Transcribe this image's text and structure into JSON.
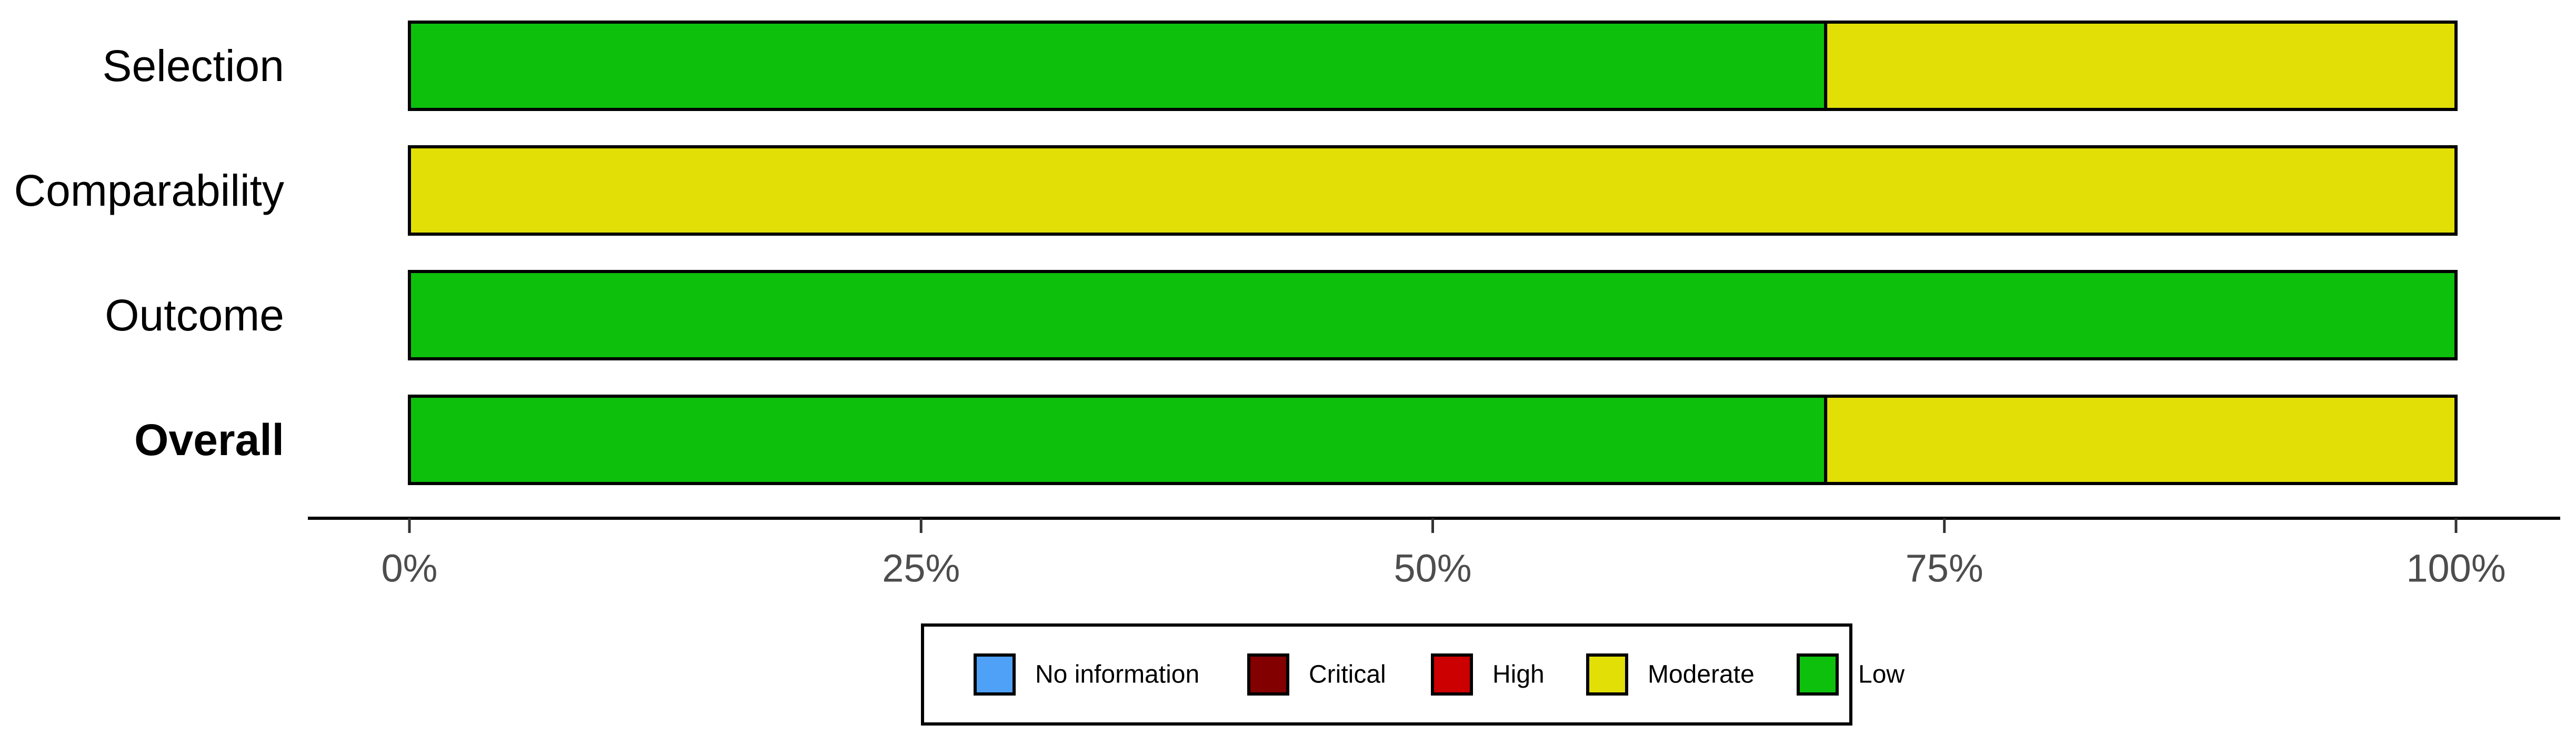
{
  "chart_data": {
    "type": "bar",
    "orientation": "horizontal",
    "stacked": true,
    "title": "",
    "xlabel": "",
    "ylabel": "",
    "xlim": [
      0,
      100
    ],
    "x_ticks": [
      "0%",
      "25%",
      "50%",
      "75%",
      "100%"
    ],
    "categories": [
      "Selection",
      "Comparability",
      "Outcome",
      "Overall"
    ],
    "bold_categories": [
      "Overall"
    ],
    "series": [
      {
        "name": "Low",
        "color": "#0CC00C",
        "values": [
          69.2,
          0,
          100,
          69.2
        ]
      },
      {
        "name": "Moderate",
        "color": "#E2DF07",
        "values": [
          30.8,
          100,
          0,
          30.8
        ]
      }
    ],
    "legend": {
      "position": "bottom",
      "entries": [
        {
          "label": "No information",
          "color": "#4EA1F7"
        },
        {
          "label": "Critical",
          "color": "#820000"
        },
        {
          "label": "High",
          "color": "#CC0000"
        },
        {
          "label": "Moderate",
          "color": "#E2DF07"
        },
        {
          "label": "Low",
          "color": "#0CC00C"
        }
      ]
    },
    "grid": false
  }
}
